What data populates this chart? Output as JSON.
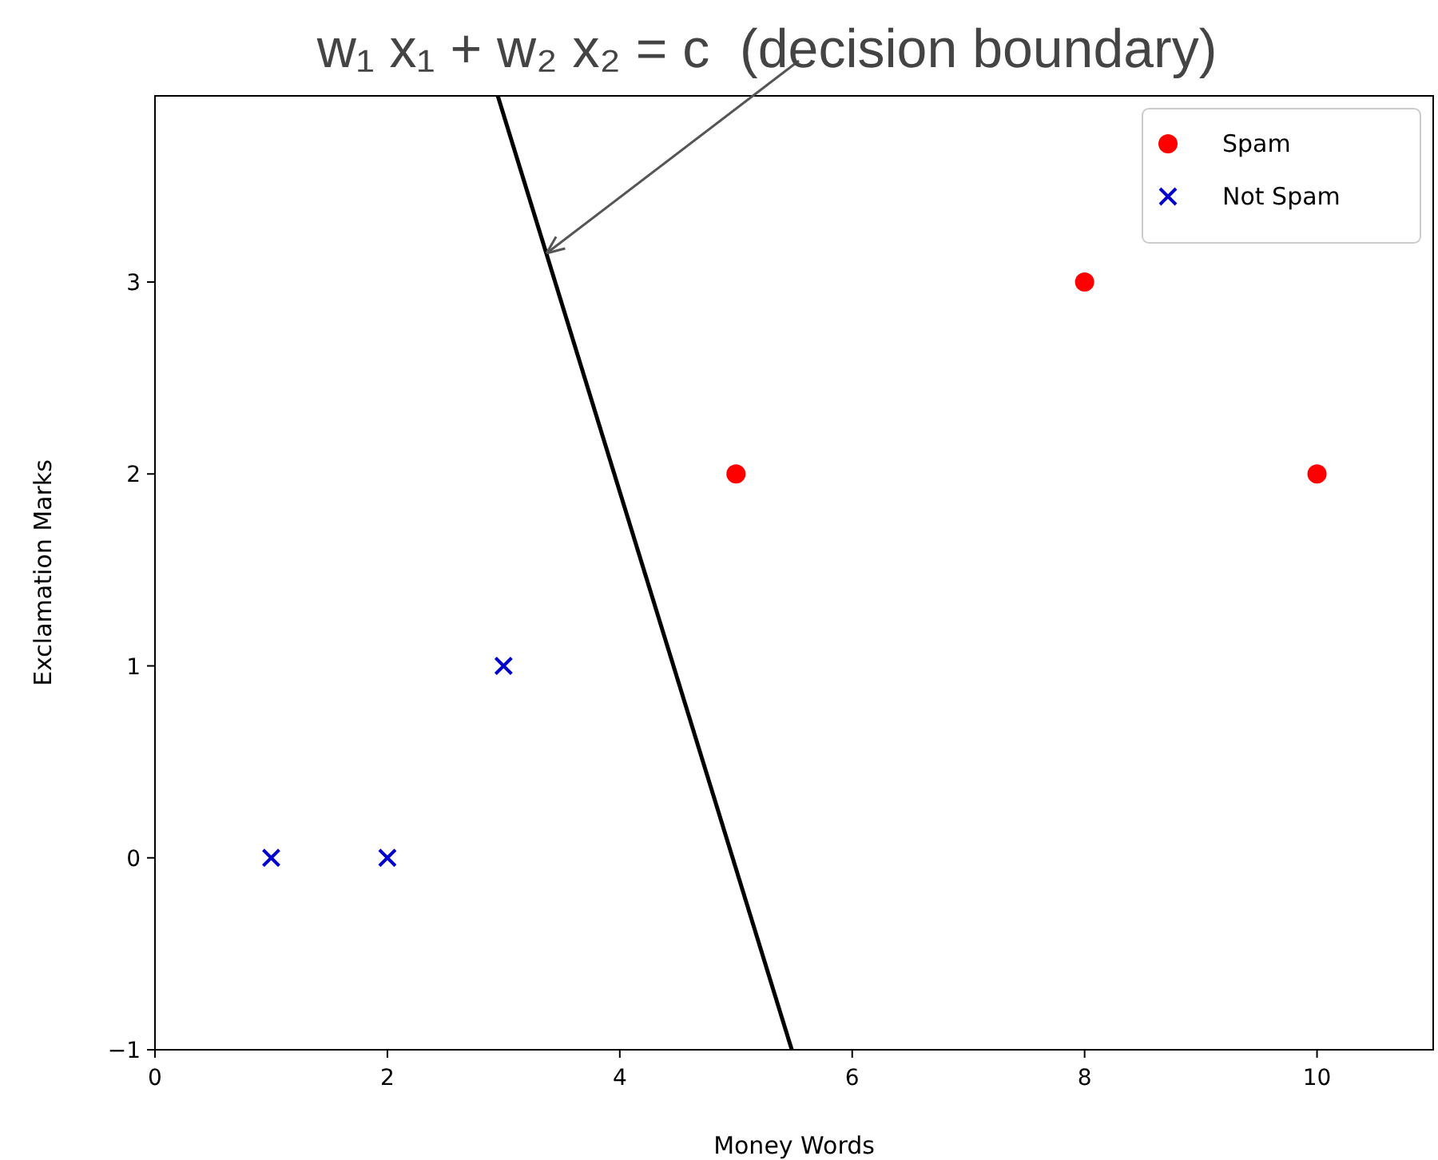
{
  "chart_data": {
    "type": "scatter",
    "annotations": [
      {
        "text": "w₁ x₁ + w₂ x₂ = c  (decision boundary)",
        "x": 3.37,
        "y": 3.15
      }
    ],
    "xlabel": "Money Words",
    "ylabel": "Exclamation Marks",
    "series": [
      {
        "name": "Spam",
        "color": "#ff0000",
        "marker": "circle",
        "x": [
          5,
          8,
          10
        ],
        "values": [
          2,
          3,
          2
        ]
      },
      {
        "name": "Not Spam",
        "color": "#0000cc",
        "marker": "cross",
        "x": [
          1,
          2,
          3
        ],
        "values": [
          0,
          0,
          1
        ]
      },
      {
        "type": "line",
        "color": "#000000",
        "x": [
          2.95,
          5.48
        ],
        "values": [
          3.97,
          -1
        ]
      }
    ],
    "xlim": [
      0,
      11
    ],
    "ylim": [
      -1,
      3.97
    ],
    "xticks": [
      0,
      2,
      4,
      6,
      8,
      10
    ],
    "yticks": [
      {
        "value": -1,
        "label": "−1"
      },
      0,
      1,
      2,
      3
    ],
    "legend": "top right",
    "grid": false
  }
}
